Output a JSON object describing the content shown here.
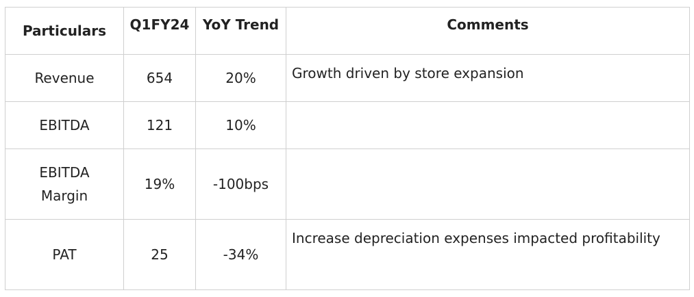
{
  "table": {
    "header": [
      "Particulars",
      "Q1FY24",
      "YoY Trend",
      "Comments"
    ],
    "rows": [
      [
        "Revenue",
        "654",
        "20%",
        "Growth driven by store expansion"
      ],
      [
        "EBITDA",
        "121",
        "10%",
        null
      ],
      [
        "EBITDA Margin",
        "19%",
        "-100bps",
        null
      ],
      [
        "PAT",
        "25",
        "-34%",
        "Increase depreciation expenses impacted profitability"
      ]
    ]
  }
}
